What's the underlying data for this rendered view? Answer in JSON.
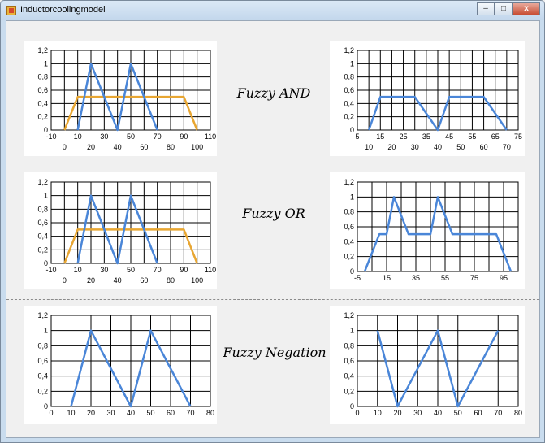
{
  "window": {
    "title": "Inductorcoolingmodel",
    "controls": {
      "minimize": "–",
      "maximize": "□",
      "close": "x"
    }
  },
  "labels": {
    "and": "Fuzzy AND",
    "or": "Fuzzy OR",
    "negation": "Fuzzy Negation"
  },
  "charts": [
    {
      "id": "and_input",
      "type": "line",
      "xlim": [
        -10,
        110
      ],
      "ylim": [
        0,
        1.2
      ],
      "xgrid": [
        0,
        10,
        20,
        30,
        40,
        50,
        60,
        70,
        80,
        90,
        100
      ],
      "xticks_row1": [
        "-10",
        "10",
        "30",
        "50",
        "70",
        "90",
        "110"
      ],
      "xticks_row2": [
        "0",
        "20",
        "40",
        "60",
        "80",
        "100"
      ],
      "yticks": [
        "0",
        "0,2",
        "0,4",
        "0,6",
        "0,8",
        "1",
        "1,2"
      ],
      "series": [
        {
          "color": "#e8a632",
          "x": [
            0,
            10,
            90,
            100
          ],
          "y": [
            0,
            0.5,
            0.5,
            0
          ]
        },
        {
          "color": "#4a86d8",
          "x": [
            10,
            20,
            40,
            50,
            70
          ],
          "y": [
            0,
            1,
            0,
            1,
            0
          ]
        }
      ]
    },
    {
      "id": "and_output",
      "type": "line",
      "xlim": [
        5,
        75
      ],
      "ylim": [
        0,
        1.2
      ],
      "xgrid": [
        10,
        15,
        20,
        25,
        30,
        35,
        40,
        45,
        50,
        55,
        60,
        65,
        70
      ],
      "xticks_row1": [
        "5",
        "15",
        "25",
        "35",
        "45",
        "55",
        "65",
        "75"
      ],
      "xticks_row2": [
        "10",
        "20",
        "30",
        "40",
        "50",
        "60",
        "70"
      ],
      "yticks": [
        "0",
        "0,2",
        "0,4",
        "0,6",
        "0,8",
        "1",
        "1,2"
      ],
      "series": [
        {
          "color": "#4a86d8",
          "x": [
            10,
            15,
            30,
            40,
            45,
            60,
            70
          ],
          "y": [
            0,
            0.5,
            0.5,
            0,
            0.5,
            0.5,
            0
          ]
        }
      ]
    },
    {
      "id": "or_input",
      "type": "line",
      "xlim": [
        -10,
        110
      ],
      "ylim": [
        0,
        1.2
      ],
      "xgrid": [
        0,
        10,
        20,
        30,
        40,
        50,
        60,
        70,
        80,
        90,
        100
      ],
      "xticks_row1": [
        "-10",
        "10",
        "30",
        "50",
        "70",
        "90",
        "110"
      ],
      "xticks_row2": [
        "0",
        "20",
        "40",
        "60",
        "80",
        "100"
      ],
      "yticks": [
        "0",
        "0,2",
        "0,4",
        "0,6",
        "0,8",
        "1",
        "1,2"
      ],
      "series": [
        {
          "color": "#e8a632",
          "x": [
            0,
            10,
            90,
            100
          ],
          "y": [
            0,
            0.5,
            0.5,
            0
          ]
        },
        {
          "color": "#4a86d8",
          "x": [
            10,
            20,
            40,
            50,
            70
          ],
          "y": [
            0,
            1,
            0,
            1,
            0
          ]
        }
      ]
    },
    {
      "id": "or_output",
      "type": "line",
      "xlim": [
        -5,
        105
      ],
      "ylim": [
        0,
        1.2
      ],
      "xgrid": [
        5,
        15,
        25,
        35,
        45,
        55,
        65,
        75,
        85,
        95
      ],
      "xticks_row1": [
        "-5",
        "15",
        "35",
        "55",
        "75",
        "95"
      ],
      "xticks_row2": [],
      "yticks": [
        "0",
        "0,2",
        "0,4",
        "0,6",
        "0,8",
        "1",
        "1,2"
      ],
      "series": [
        {
          "color": "#4a86d8",
          "x": [
            0,
            10,
            15,
            20,
            30,
            45,
            50,
            60,
            90,
            100
          ],
          "y": [
            0,
            0.5,
            0.5,
            1,
            0.5,
            0.5,
            1,
            0.5,
            0.5,
            0
          ]
        }
      ]
    },
    {
      "id": "neg_input",
      "type": "line",
      "xlim": [
        0,
        80
      ],
      "ylim": [
        0,
        1.2
      ],
      "xgrid": [
        0,
        10,
        20,
        30,
        40,
        50,
        60,
        70,
        80
      ],
      "xticks_row1": [
        "0",
        "10",
        "20",
        "30",
        "40",
        "50",
        "60",
        "70",
        "80"
      ],
      "xticks_row2": [],
      "yticks": [
        "0",
        "0,2",
        "0,4",
        "0,6",
        "0,8",
        "1",
        "1,2"
      ],
      "series": [
        {
          "color": "#4a86d8",
          "x": [
            10,
            20,
            40,
            50,
            70
          ],
          "y": [
            0,
            1,
            0,
            1,
            0
          ]
        }
      ]
    },
    {
      "id": "neg_output",
      "type": "line",
      "xlim": [
        0,
        80
      ],
      "ylim": [
        0,
        1.2
      ],
      "xgrid": [
        0,
        10,
        20,
        30,
        40,
        50,
        60,
        70,
        80
      ],
      "xticks_row1": [
        "0",
        "10",
        "20",
        "30",
        "40",
        "50",
        "60",
        "70",
        "80"
      ],
      "xticks_row2": [],
      "yticks": [
        "0",
        "0,2",
        "0,4",
        "0,6",
        "0,8",
        "1",
        "1,2"
      ],
      "series": [
        {
          "color": "#4a86d8",
          "x": [
            10,
            20,
            40,
            50,
            70
          ],
          "y": [
            1,
            0,
            1,
            0,
            1
          ]
        }
      ]
    }
  ],
  "chart_data": [
    {
      "type": "line",
      "title": "",
      "xlim": [
        -10,
        110
      ],
      "ylim": [
        0,
        1.2
      ],
      "series": [
        {
          "x": [
            0,
            10,
            90,
            100
          ],
          "y": [
            0,
            0.5,
            0.5,
            0
          ]
        },
        {
          "x": [
            10,
            20,
            40,
            50,
            70
          ],
          "y": [
            0,
            1,
            0,
            1,
            0
          ]
        }
      ]
    },
    {
      "type": "line",
      "title": "",
      "xlim": [
        5,
        75
      ],
      "ylim": [
        0,
        1.2
      ],
      "series": [
        {
          "x": [
            10,
            15,
            30,
            40,
            45,
            60,
            70
          ],
          "y": [
            0,
            0.5,
            0.5,
            0,
            0.5,
            0.5,
            0
          ]
        }
      ]
    },
    {
      "type": "line",
      "title": "",
      "xlim": [
        -10,
        110
      ],
      "ylim": [
        0,
        1.2
      ],
      "series": [
        {
          "x": [
            0,
            10,
            90,
            100
          ],
          "y": [
            0,
            0.5,
            0.5,
            0
          ]
        },
        {
          "x": [
            10,
            20,
            40,
            50,
            70
          ],
          "y": [
            0,
            1,
            0,
            1,
            0
          ]
        }
      ]
    },
    {
      "type": "line",
      "title": "",
      "xlim": [
        -5,
        105
      ],
      "ylim": [
        0,
        1.2
      ],
      "series": [
        {
          "x": [
            0,
            10,
            15,
            20,
            30,
            45,
            50,
            60,
            90,
            100
          ],
          "y": [
            0,
            0.5,
            0.5,
            1,
            0.5,
            0.5,
            1,
            0.5,
            0.5,
            0
          ]
        }
      ]
    },
    {
      "type": "line",
      "title": "",
      "xlim": [
        0,
        80
      ],
      "ylim": [
        0,
        1.2
      ],
      "series": [
        {
          "x": [
            10,
            20,
            40,
            50,
            70
          ],
          "y": [
            0,
            1,
            0,
            1,
            0
          ]
        }
      ]
    },
    {
      "type": "line",
      "title": "",
      "xlim": [
        0,
        80
      ],
      "ylim": [
        0,
        1.2
      ],
      "series": [
        {
          "x": [
            10,
            20,
            40,
            50,
            70
          ],
          "y": [
            1,
            0,
            1,
            0,
            1
          ]
        }
      ]
    }
  ]
}
